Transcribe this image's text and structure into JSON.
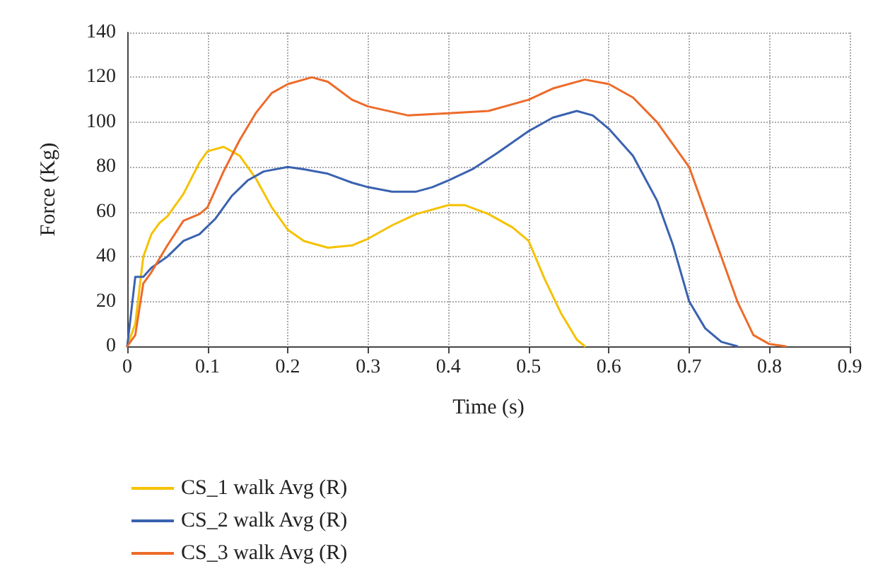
{
  "chart_data": {
    "type": "line",
    "xlabel": "Time (s)",
    "ylabel": "Force (Kg)",
    "xlim": [
      0,
      0.9
    ],
    "xticks": [
      0,
      0.1,
      0.2,
      0.3,
      0.4,
      0.5,
      0.6,
      0.7,
      0.8,
      0.9
    ],
    "ylim": [
      0,
      140
    ],
    "yticks": [
      0,
      20,
      40,
      60,
      80,
      100,
      120,
      140
    ],
    "grid": true,
    "legend": "bottom",
    "marker": "none",
    "line_style": "solid",
    "series": [
      {
        "name": "CS_1 walk Avg (R)",
        "color": "#f5c200",
        "x": [
          0,
          0.01,
          0.02,
          0.03,
          0.04,
          0.05,
          0.07,
          0.09,
          0.1,
          0.12,
          0.14,
          0.16,
          0.18,
          0.2,
          0.22,
          0.25,
          0.28,
          0.3,
          0.33,
          0.36,
          0.4,
          0.42,
          0.45,
          0.48,
          0.5,
          0.52,
          0.54,
          0.56,
          0.57
        ],
        "values": [
          0,
          10,
          40,
          50,
          55,
          58,
          68,
          82,
          87,
          89,
          85,
          75,
          62,
          52,
          47,
          44,
          45,
          48,
          54,
          59,
          63,
          63,
          59,
          53,
          47,
          30,
          15,
          3,
          0
        ]
      },
      {
        "name": "CS_2 walk Avg (R)",
        "color": "#3a62b0",
        "x": [
          0,
          0.01,
          0.02,
          0.03,
          0.05,
          0.07,
          0.09,
          0.11,
          0.13,
          0.15,
          0.17,
          0.2,
          0.22,
          0.25,
          0.28,
          0.3,
          0.33,
          0.36,
          0.38,
          0.4,
          0.43,
          0.46,
          0.5,
          0.53,
          0.56,
          0.58,
          0.6,
          0.63,
          0.66,
          0.68,
          0.7,
          0.72,
          0.74,
          0.76
        ],
        "values": [
          0,
          31,
          31,
          35,
          40,
          47,
          50,
          57,
          67,
          74,
          78,
          80,
          79,
          77,
          73,
          71,
          69,
          69,
          71,
          74,
          79,
          86,
          96,
          102,
          105,
          103,
          97,
          85,
          65,
          45,
          20,
          8,
          2,
          0
        ]
      },
      {
        "name": "CS_3 walk Avg (R)",
        "color": "#ed6b2a",
        "x": [
          0,
          0.01,
          0.02,
          0.03,
          0.05,
          0.07,
          0.09,
          0.1,
          0.12,
          0.14,
          0.16,
          0.18,
          0.2,
          0.23,
          0.25,
          0.28,
          0.3,
          0.35,
          0.4,
          0.45,
          0.5,
          0.53,
          0.57,
          0.6,
          0.63,
          0.66,
          0.7,
          0.73,
          0.76,
          0.78,
          0.8,
          0.82
        ],
        "values": [
          0,
          5,
          28,
          33,
          45,
          56,
          59,
          62,
          78,
          92,
          104,
          113,
          117,
          120,
          118,
          110,
          107,
          103,
          104,
          105,
          110,
          115,
          119,
          117,
          111,
          100,
          80,
          50,
          20,
          5,
          1,
          0
        ]
      }
    ]
  }
}
